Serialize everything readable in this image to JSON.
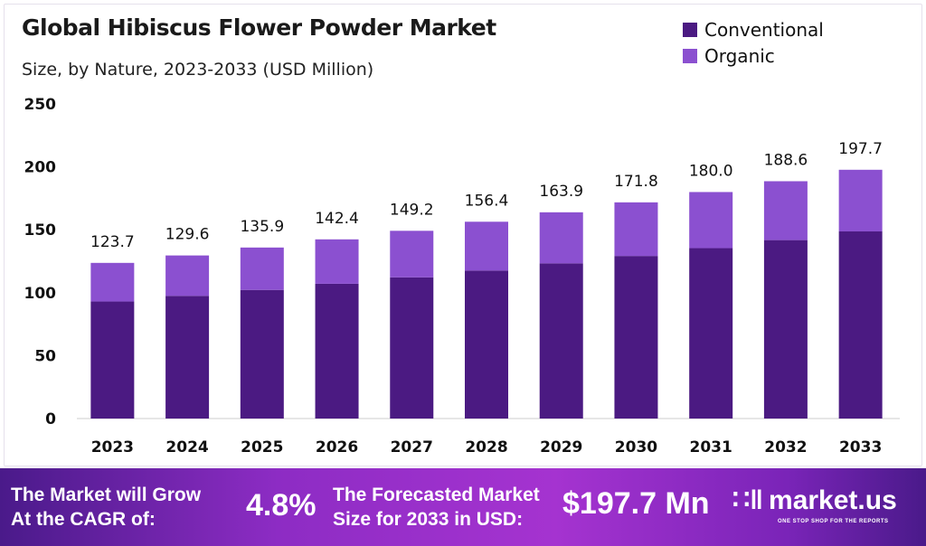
{
  "chart_data": {
    "type": "bar",
    "stacked": true,
    "title": "Global Hibiscus Flower Powder Market",
    "subtitle": "Size, by Nature, 2023-2033 (USD Million)",
    "categories": [
      "2023",
      "2024",
      "2025",
      "2026",
      "2027",
      "2028",
      "2029",
      "2030",
      "2031",
      "2032",
      "2033"
    ],
    "series": [
      {
        "name": "Conventional",
        "color": "#4b1a82",
        "values": [
          93.0,
          97.5,
          102.2,
          107.1,
          112.2,
          117.6,
          123.3,
          129.2,
          135.4,
          141.8,
          148.7
        ]
      },
      {
        "name": "Organic",
        "color": "#8b50d0",
        "values": [
          30.7,
          32.1,
          33.7,
          35.3,
          37.0,
          38.8,
          40.6,
          42.6,
          44.6,
          46.8,
          49.0
        ]
      }
    ],
    "totals": [
      "123.7",
      "129.6",
      "135.9",
      "142.4",
      "149.2",
      "156.4",
      "163.9",
      "171.8",
      "180.0",
      "188.6",
      "197.7"
    ],
    "yticks": [
      "0",
      "50",
      "100",
      "150",
      "200",
      "250"
    ],
    "ylim": [
      0,
      250
    ],
    "grid": false,
    "legend_position": "top-right"
  },
  "banner": {
    "cagr_label": [
      "The Market will Grow",
      "At the CAGR of:"
    ],
    "cagr_value": "4.8%",
    "forecast_label": [
      "The Forecasted Market",
      "Size for 2033 in USD:"
    ],
    "forecast_value": "$197.7 Mn",
    "brand": "market.us",
    "tagline": "ONE STOP SHOP FOR THE REPORTS"
  }
}
